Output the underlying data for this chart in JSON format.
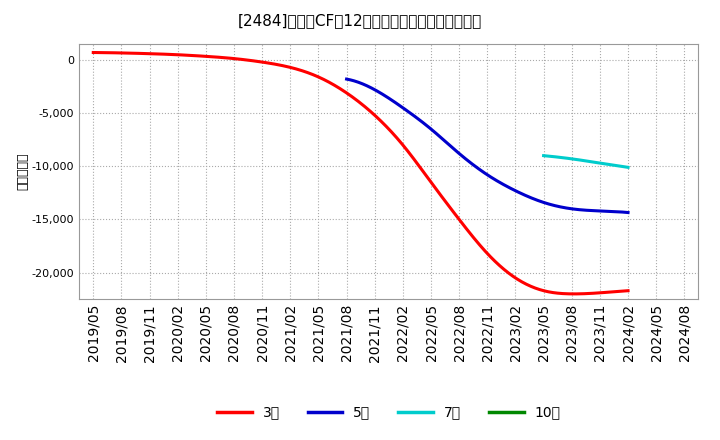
{
  "title": "[⒄］　営業CFの12か月移動合計の平均値の推移",
  "title_display": "[2484]　営業CFの12か月移動合計の平均値の推移",
  "ylabel": "（百万円）",
  "ylim": [
    -22500,
    1500
  ],
  "yticks": [
    0,
    -5000,
    -10000,
    -15000,
    -20000
  ],
  "background_color": "#ffffff",
  "plot_bg_color": "#ffffff",
  "grid_color": "#aaaaaa",
  "x_labels": [
    "2019/05",
    "2019/08",
    "2019/11",
    "2020/02",
    "2020/05",
    "2020/08",
    "2020/11",
    "2021/02",
    "2021/05",
    "2021/08",
    "2021/11",
    "2022/02",
    "2022/05",
    "2022/08",
    "2022/11",
    "2023/02",
    "2023/05",
    "2023/08",
    "2023/11",
    "2024/02",
    "2024/05",
    "2024/08"
  ],
  "series_3": {
    "color": "#ff0000",
    "points": [
      [
        0,
        700
      ],
      [
        1,
        660
      ],
      [
        2,
        590
      ],
      [
        3,
        490
      ],
      [
        4,
        340
      ],
      [
        5,
        130
      ],
      [
        6,
        -200
      ],
      [
        7,
        -700
      ],
      [
        8,
        -1600
      ],
      [
        9,
        -3100
      ],
      [
        10,
        -5200
      ],
      [
        11,
        -8000
      ],
      [
        12,
        -11500
      ],
      [
        13,
        -15000
      ],
      [
        14,
        -18200
      ],
      [
        15,
        -20500
      ],
      [
        16,
        -21700
      ],
      [
        17,
        -22000
      ],
      [
        18,
        -21900
      ],
      [
        19,
        -21700
      ]
    ]
  },
  "series_5": {
    "color": "#0000cc",
    "points": [
      [
        9,
        -1800
      ],
      [
        10,
        -2800
      ],
      [
        11,
        -4500
      ],
      [
        12,
        -6500
      ],
      [
        13,
        -8800
      ],
      [
        14,
        -10800
      ],
      [
        15,
        -12300
      ],
      [
        16,
        -13400
      ],
      [
        17,
        -14000
      ],
      [
        18,
        -14200
      ],
      [
        19,
        -14350
      ]
    ]
  },
  "series_7": {
    "color": "#00cccc",
    "points": [
      [
        16,
        -9000
      ],
      [
        17,
        -9300
      ],
      [
        18,
        -9700
      ],
      [
        19,
        -10100
      ]
    ]
  },
  "series_10": {
    "color": "#008800",
    "points": []
  },
  "legend": [
    {
      "label": "3年",
      "color": "#ff0000"
    },
    {
      "label": "5年",
      "color": "#0000cc"
    },
    {
      "label": "7年",
      "color": "#00cccc"
    },
    {
      "label": "10年",
      "color": "#008800"
    }
  ]
}
